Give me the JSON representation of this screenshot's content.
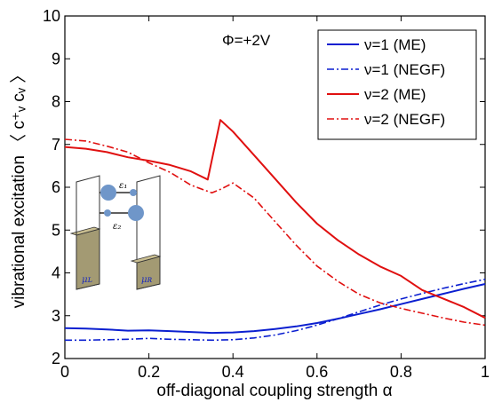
{
  "chart_data": {
    "type": "line",
    "title": "",
    "xlabel": "off-diagonal coupling strength α",
    "ylabel": "vibrational excitation 〈 c⁺ᵥ cᵥ 〉",
    "xlim": [
      0,
      1
    ],
    "ylim": [
      2,
      10
    ],
    "x_ticks": [
      "0",
      "0.2",
      "0.4",
      "0.6",
      "0.8",
      "1"
    ],
    "y_ticks": [
      "2",
      "3",
      "4",
      "5",
      "6",
      "7",
      "8",
      "9",
      "10"
    ],
    "grid": false,
    "legend_position": "top-right",
    "annotation": "Φ=+2V",
    "series": [
      {
        "name": "ν=1 (ME)",
        "color": "#0b1fd0",
        "dash": "solid",
        "x": [
          0,
          0.05,
          0.1,
          0.15,
          0.2,
          0.25,
          0.3,
          0.35,
          0.4,
          0.45,
          0.5,
          0.55,
          0.6,
          0.65,
          0.7,
          0.75,
          0.8,
          0.85,
          0.9,
          0.95,
          1.0
        ],
        "y": [
          2.71,
          2.7,
          2.68,
          2.65,
          2.66,
          2.64,
          2.62,
          2.6,
          2.61,
          2.64,
          2.69,
          2.75,
          2.83,
          2.93,
          3.04,
          3.15,
          3.27,
          3.39,
          3.51,
          3.63,
          3.74
        ]
      },
      {
        "name": "ν=1 (NEGF)",
        "color": "#0b1fd0",
        "dash": "dashdot",
        "x": [
          0,
          0.05,
          0.1,
          0.15,
          0.2,
          0.25,
          0.3,
          0.35,
          0.4,
          0.45,
          0.5,
          0.55,
          0.6,
          0.65,
          0.7,
          0.75,
          0.8,
          0.85,
          0.9,
          0.95,
          1.0
        ],
        "y": [
          2.43,
          2.43,
          2.44,
          2.45,
          2.47,
          2.45,
          2.44,
          2.43,
          2.44,
          2.48,
          2.55,
          2.65,
          2.78,
          2.93,
          3.09,
          3.25,
          3.39,
          3.52,
          3.64,
          3.75,
          3.85
        ]
      },
      {
        "name": "ν=2 (ME)",
        "color": "#e01010",
        "dash": "solid",
        "x": [
          0,
          0.05,
          0.1,
          0.15,
          0.2,
          0.25,
          0.3,
          0.34,
          0.37,
          0.4,
          0.45,
          0.5,
          0.55,
          0.6,
          0.65,
          0.7,
          0.75,
          0.8,
          0.85,
          0.9,
          0.95,
          1.0
        ],
        "y": [
          6.94,
          6.9,
          6.82,
          6.7,
          6.62,
          6.52,
          6.37,
          6.18,
          7.57,
          7.3,
          6.75,
          6.2,
          5.65,
          5.15,
          4.76,
          4.43,
          4.15,
          3.93,
          3.6,
          3.4,
          3.2,
          2.95
        ]
      },
      {
        "name": "ν=2 (NEGF)",
        "color": "#e01010",
        "dash": "dashdot",
        "x": [
          0,
          0.05,
          0.1,
          0.15,
          0.2,
          0.25,
          0.3,
          0.35,
          0.37,
          0.4,
          0.45,
          0.5,
          0.55,
          0.6,
          0.65,
          0.7,
          0.75,
          0.8,
          0.85,
          0.9,
          0.95,
          1.0
        ],
        "y": [
          7.12,
          7.08,
          6.96,
          6.82,
          6.57,
          6.35,
          6.05,
          5.87,
          5.95,
          6.1,
          5.75,
          5.2,
          4.65,
          4.16,
          3.8,
          3.5,
          3.3,
          3.17,
          3.06,
          2.95,
          2.85,
          2.78
        ]
      }
    ],
    "inset": {
      "labels": [
        "ε₁",
        "ε₂",
        "μʟ",
        "μʀ"
      ]
    }
  }
}
